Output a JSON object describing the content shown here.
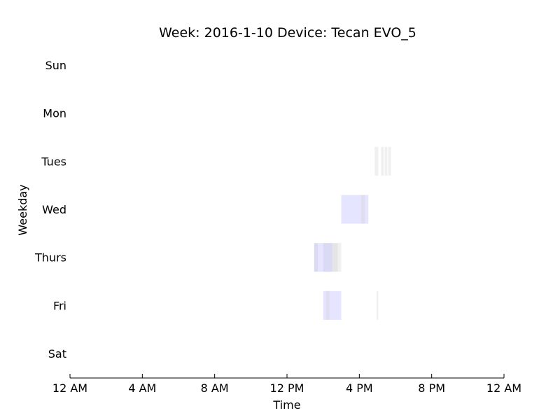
{
  "chart_data": {
    "type": "bar",
    "orientation": "horizontal-timeline",
    "title": "Week: 2016-1-10  Device: Tecan EVO_5",
    "xlabel": "Time",
    "ylabel": "Weekday",
    "x_unit": "hours",
    "xlim": [
      0,
      24
    ],
    "x_ticks": [
      {
        "value": 0,
        "label": "12 AM"
      },
      {
        "value": 4,
        "label": "4 AM"
      },
      {
        "value": 8,
        "label": "8 AM"
      },
      {
        "value": 12,
        "label": "12 PM"
      },
      {
        "value": 16,
        "label": "4 PM"
      },
      {
        "value": 20,
        "label": "8 PM"
      },
      {
        "value": 24,
        "label": "12 AM"
      }
    ],
    "categories": [
      "Sun",
      "Mon",
      "Tues",
      "Wed",
      "Thurs",
      "Fri",
      "Sat"
    ],
    "grid": false,
    "legend": "none",
    "colors": {
      "gray": "#cccccc",
      "blue": "#aaaaff"
    },
    "intervals": [
      {
        "day": "Tues",
        "start": 16.85,
        "end": 17.05,
        "color": "gray"
      },
      {
        "day": "Tues",
        "start": 17.2,
        "end": 17.35,
        "color": "gray"
      },
      {
        "day": "Tues",
        "start": 17.4,
        "end": 17.55,
        "color": "gray"
      },
      {
        "day": "Tues",
        "start": 17.6,
        "end": 17.75,
        "color": "gray"
      },
      {
        "day": "Wed",
        "start": 15.0,
        "end": 16.5,
        "color": "blue"
      },
      {
        "day": "Wed",
        "start": 16.1,
        "end": 16.3,
        "color": "gray"
      },
      {
        "day": "Thurs",
        "start": 13.5,
        "end": 13.7,
        "color": "gray"
      },
      {
        "day": "Thurs",
        "start": 14.0,
        "end": 14.6,
        "color": "gray"
      },
      {
        "day": "Thurs",
        "start": 13.5,
        "end": 14.5,
        "color": "blue"
      },
      {
        "day": "Thurs",
        "start": 14.5,
        "end": 15.0,
        "color": "gray"
      },
      {
        "day": "Thurs",
        "start": 14.6,
        "end": 14.8,
        "color": "gray"
      },
      {
        "day": "Fri",
        "start": 14.0,
        "end": 15.0,
        "color": "blue"
      },
      {
        "day": "Fri",
        "start": 14.15,
        "end": 14.35,
        "color": "gray"
      },
      {
        "day": "Fri",
        "start": 16.95,
        "end": 17.05,
        "color": "gray"
      }
    ]
  }
}
